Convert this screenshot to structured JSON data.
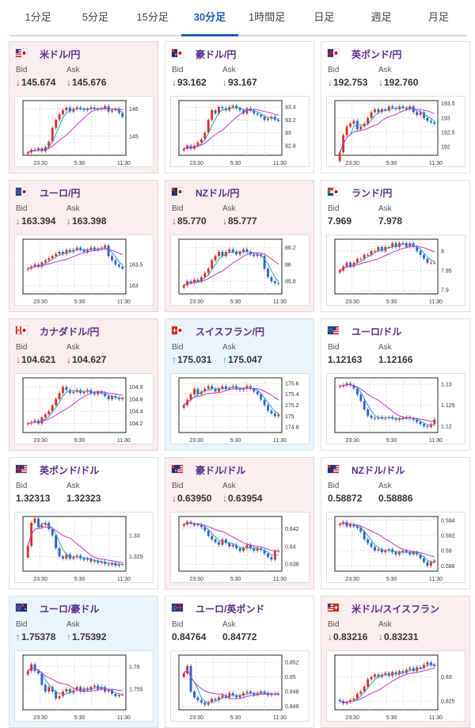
{
  "tabs": [
    {
      "label": "1分足",
      "active": false
    },
    {
      "label": "5分足",
      "active": false
    },
    {
      "label": "15分足",
      "active": false
    },
    {
      "label": "30分足",
      "active": true
    },
    {
      "label": "1時間足",
      "active": false
    },
    {
      "label": "日足",
      "active": false
    },
    {
      "label": "週足",
      "active": false
    },
    {
      "label": "月足",
      "active": false
    }
  ],
  "labels": {
    "bid": "Bid",
    "ask": "Ask"
  },
  "colors": {
    "up": "#d93025",
    "down": "#2a62c9",
    "ma": "#cc33cc",
    "active_tab": "#1a5fb4"
  },
  "cards": [
    {
      "name": "米ドル/円",
      "flag": "us-jp",
      "bg": "pink",
      "bid": "145.674",
      "ask": "145.676",
      "bid_dir": "down",
      "ask_dir": "down",
      "chart_data": {
        "type": "candlestick",
        "x_ticks": [
          "23:30",
          "5:30",
          "11:30"
        ],
        "y_ticks": [
          "146",
          "145"
        ],
        "y_tick_values": [
          146,
          145
        ],
        "ylim": [
          144.3,
          146.3
        ],
        "closes": [
          144.4,
          144.5,
          144.5,
          144.55,
          144.45,
          144.6,
          144.8,
          145.3,
          145.6,
          145.8,
          145.95,
          146.05,
          145.9,
          146.0,
          146.05,
          146.0,
          145.95,
          146.0,
          146.05,
          146.0,
          145.98,
          146.02,
          146.1,
          145.9,
          145.95,
          146.0,
          145.85,
          145.7
        ]
      }
    },
    {
      "name": "豪ドル/円",
      "flag": "au-jp",
      "bg": "white",
      "bid": "93.162",
      "ask": "93.167",
      "bid_dir": "down",
      "ask_dir": "down",
      "chart_data": {
        "type": "candlestick",
        "x_ticks": [
          "23:30",
          "5:30",
          "11:30"
        ],
        "y_ticks": [
          "93.4",
          "93.2",
          "93",
          "92.8"
        ],
        "y_tick_values": [
          93.4,
          93.2,
          93.0,
          92.8
        ],
        "ylim": [
          92.65,
          93.5
        ],
        "closes": [
          92.75,
          92.8,
          92.75,
          92.8,
          92.85,
          92.9,
          93.0,
          93.2,
          93.35,
          93.3,
          93.4,
          93.38,
          93.35,
          93.4,
          93.42,
          93.38,
          93.35,
          93.3,
          93.38,
          93.35,
          93.3,
          93.28,
          93.25,
          93.2,
          93.22,
          93.25,
          93.2,
          93.18
        ]
      }
    },
    {
      "name": "英ポンド/円",
      "flag": "gb-jp",
      "bg": "white",
      "bid": "192.753",
      "ask": "192.760",
      "bid_dir": "down",
      "ask_dir": "down",
      "chart_data": {
        "type": "candlestick",
        "x_ticks": [
          "23:30",
          "5:30",
          "11:30"
        ],
        "y_ticks": [
          "193.5",
          "193",
          "192.5",
          "192"
        ],
        "y_tick_values": [
          193.5,
          193.0,
          192.5,
          192.0
        ],
        "ylim": [
          191.7,
          193.6
        ],
        "closes": [
          191.8,
          192.4,
          192.7,
          192.8,
          192.9,
          192.6,
          192.7,
          192.8,
          193.0,
          193.2,
          193.3,
          193.2,
          193.3,
          193.25,
          193.4,
          193.35,
          193.3,
          193.4,
          193.35,
          193.3,
          193.4,
          193.2,
          193.1,
          193.2,
          193.0,
          192.9,
          192.85,
          192.8
        ]
      }
    },
    {
      "name": "ユーロ/円",
      "flag": "eu-jp",
      "bg": "pink",
      "bid": "163.394",
      "ask": "163.398",
      "bid_dir": "down",
      "ask_dir": "down",
      "chart_data": {
        "type": "candlestick",
        "x_ticks": [
          "23:30",
          "5:30",
          "11:30"
        ],
        "y_ticks": [
          "163.5",
          "163"
        ],
        "y_tick_values": [
          163.5,
          163.0
        ],
        "ylim": [
          162.8,
          164.1
        ],
        "closes": [
          163.4,
          163.45,
          163.5,
          163.45,
          163.55,
          163.6,
          163.65,
          163.7,
          163.75,
          163.8,
          163.75,
          163.85,
          163.8,
          163.85,
          163.9,
          163.85,
          163.8,
          163.85,
          163.9,
          163.85,
          163.88,
          163.9,
          163.95,
          163.7,
          163.6,
          163.5,
          163.45,
          163.4
        ]
      }
    },
    {
      "name": "NZドル/円",
      "flag": "nz-jp",
      "bg": "pink",
      "bid": "85.770",
      "ask": "85.777",
      "bid_dir": "down",
      "ask_dir": "down",
      "chart_data": {
        "type": "candlestick",
        "x_ticks": [
          "23:30",
          "5:30",
          "11:30"
        ],
        "y_ticks": [
          "86.2",
          "86",
          "85.8"
        ],
        "y_tick_values": [
          86.2,
          86.0,
          85.8
        ],
        "ylim": [
          85.65,
          86.3
        ],
        "closes": [
          85.75,
          85.8,
          85.78,
          85.82,
          85.8,
          85.85,
          85.9,
          85.95,
          86.05,
          86.1,
          86.15,
          86.1,
          86.15,
          86.18,
          86.15,
          86.12,
          86.15,
          86.18,
          86.15,
          86.12,
          86.1,
          86.12,
          86.1,
          85.95,
          85.85,
          85.8,
          85.78,
          85.77
        ]
      }
    },
    {
      "name": "ランド/円",
      "flag": "za-jp",
      "bg": "white",
      "bid": "7.969",
      "ask": "7.978",
      "bid_dir": "none",
      "ask_dir": "none",
      "chart_data": {
        "type": "candlestick",
        "x_ticks": [
          "23:30",
          "5:30",
          "11:30"
        ],
        "y_ticks": [
          "8",
          "7.95",
          "7.9"
        ],
        "y_tick_values": [
          8.0,
          7.95,
          7.9
        ],
        "ylim": [
          7.89,
          8.03
        ],
        "closes": [
          7.95,
          7.96,
          7.97,
          7.96,
          7.97,
          7.98,
          7.98,
          7.99,
          7.99,
          8.0,
          8.0,
          8.01,
          8.0,
          8.01,
          8.01,
          8.02,
          8.01,
          8.02,
          8.02,
          8.01,
          8.02,
          8.01,
          8.0,
          7.99,
          7.98,
          7.97,
          7.97,
          7.97
        ]
      }
    },
    {
      "name": "カナダドル/円",
      "flag": "ca-jp",
      "bg": "pink",
      "bid": "104.621",
      "ask": "104.627",
      "bid_dir": "down",
      "ask_dir": "down",
      "chart_data": {
        "type": "candlestick",
        "x_ticks": [
          "23:30",
          "5:30",
          "11:30"
        ],
        "y_ticks": [
          "104.8",
          "104.6",
          "104.4",
          "104.2"
        ],
        "y_tick_values": [
          104.8,
          104.6,
          104.4,
          104.2
        ],
        "ylim": [
          104.05,
          104.95
        ],
        "closes": [
          104.2,
          104.22,
          104.25,
          104.2,
          104.3,
          104.35,
          104.4,
          104.5,
          104.6,
          104.7,
          104.8,
          104.75,
          104.7,
          104.72,
          104.75,
          104.7,
          104.72,
          104.75,
          104.7,
          104.68,
          104.72,
          104.7,
          104.65,
          104.6,
          104.65,
          104.62,
          104.6,
          104.62
        ]
      }
    },
    {
      "name": "スイスフラン/円",
      "flag": "ch-jp",
      "bg": "blue",
      "bid": "175.031",
      "ask": "175.047",
      "bid_dir": "up",
      "ask_dir": "up",
      "chart_data": {
        "type": "candlestick",
        "x_ticks": [
          "23:30",
          "5:30",
          "11:30"
        ],
        "y_ticks": [
          "175.6",
          "175.4",
          "175.2",
          "175",
          "174.8"
        ],
        "y_tick_values": [
          175.6,
          175.4,
          175.2,
          175.0,
          174.8
        ],
        "ylim": [
          174.7,
          175.7
        ],
        "closes": [
          175.2,
          175.3,
          175.4,
          175.5,
          175.4,
          175.45,
          175.5,
          175.55,
          175.5,
          175.45,
          175.5,
          175.55,
          175.5,
          175.52,
          175.55,
          175.5,
          175.48,
          175.5,
          175.55,
          175.5,
          175.45,
          175.4,
          175.3,
          175.2,
          175.1,
          175.05,
          175.0,
          175.03
        ]
      }
    },
    {
      "name": "ユーロ/ドル",
      "flag": "eu-us",
      "bg": "white",
      "bid": "1.12163",
      "ask": "1.12166",
      "bid_dir": "none",
      "ask_dir": "none",
      "chart_data": {
        "type": "candlestick",
        "x_ticks": [
          "23:30",
          "5:30",
          "11:30"
        ],
        "y_ticks": [
          "1.13",
          "1.125",
          "1.12"
        ],
        "y_tick_values": [
          1.13,
          1.125,
          1.12
        ],
        "ylim": [
          1.1185,
          1.1315
        ],
        "closes": [
          1.1295,
          1.1298,
          1.1302,
          1.1298,
          1.129,
          1.1275,
          1.126,
          1.124,
          1.1225,
          1.122,
          1.1218,
          1.1222,
          1.1218,
          1.122,
          1.1222,
          1.1218,
          1.1215,
          1.1218,
          1.122,
          1.1222,
          1.1218,
          1.1215,
          1.121,
          1.1205,
          1.12,
          1.1198,
          1.1205,
          1.1216
        ]
      }
    },
    {
      "name": "英ポンド/ドル",
      "flag": "gb-us",
      "bg": "white",
      "bid": "1.32313",
      "ask": "1.32323",
      "bid_dir": "none",
      "ask_dir": "none",
      "chart_data": {
        "type": "candlestick",
        "x_ticks": [
          "23:30",
          "5:30",
          "11:30"
        ],
        "y_ticks": [
          "1.33",
          "1.325"
        ],
        "y_tick_values": [
          1.33,
          1.325
        ],
        "ylim": [
          1.3215,
          1.3345
        ],
        "closes": [
          1.3275,
          1.333,
          1.334,
          1.332,
          1.3325,
          1.333,
          1.3315,
          1.33,
          1.327,
          1.325,
          1.3245,
          1.3255,
          1.3245,
          1.3248,
          1.3252,
          1.3245,
          1.3242,
          1.3245,
          1.3238,
          1.324,
          1.3235,
          1.3238,
          1.3232,
          1.323,
          1.3235,
          1.3228,
          1.3232,
          1.3231
        ]
      }
    },
    {
      "name": "豪ドル/ドル",
      "flag": "au-us",
      "bg": "pink",
      "bid": "0.63950",
      "ask": "0.63954",
      "bid_dir": "down",
      "ask_dir": "down",
      "chart_data": {
        "type": "candlestick",
        "x_ticks": [
          "23:30",
          "5:30",
          "11:30"
        ],
        "y_ticks": [
          "0.642",
          "0.64",
          "0.638"
        ],
        "y_tick_values": [
          0.642,
          0.64,
          0.638
        ],
        "ylim": [
          0.6372,
          0.6434
        ],
        "closes": [
          0.6425,
          0.6428,
          0.6426,
          0.6424,
          0.6425,
          0.6422,
          0.6418,
          0.6412,
          0.6408,
          0.6405,
          0.6402,
          0.6408,
          0.6404,
          0.64,
          0.6402,
          0.6398,
          0.6395,
          0.6398,
          0.6402,
          0.6398,
          0.6395,
          0.6398,
          0.6396,
          0.6392,
          0.6388,
          0.6385,
          0.6395,
          0.6395
        ]
      }
    },
    {
      "name": "NZドル/ドル",
      "flag": "nz-us",
      "bg": "white",
      "bid": "0.58872",
      "ask": "0.58886",
      "bid_dir": "none",
      "ask_dir": "none",
      "chart_data": {
        "type": "candlestick",
        "x_ticks": [
          "23:30",
          "5:30",
          "11:30"
        ],
        "y_ticks": [
          "0.594",
          "0.592",
          "0.59",
          "0.588"
        ],
        "y_tick_values": [
          0.594,
          0.592,
          0.59,
          0.588
        ],
        "ylim": [
          0.5873,
          0.5945
        ],
        "closes": [
          0.5935,
          0.5938,
          0.5932,
          0.5935,
          0.5932,
          0.593,
          0.5925,
          0.5915,
          0.591,
          0.5905,
          0.59,
          0.5902,
          0.5898,
          0.59,
          0.5902,
          0.5898,
          0.5895,
          0.5898,
          0.59,
          0.5898,
          0.5895,
          0.5898,
          0.5895,
          0.589,
          0.5885,
          0.588,
          0.5885,
          0.5887
        ]
      }
    },
    {
      "name": "ユーロ/豪ドル",
      "flag": "eu-au",
      "bg": "blue",
      "bid": "1.75378",
      "ask": "1.75392",
      "bid_dir": "up",
      "ask_dir": "up",
      "chart_data": {
        "type": "candlestick",
        "x_ticks": [
          "23:30",
          "5:30",
          "11:30"
        ],
        "y_ticks": [
          "1.76",
          "1.755"
        ],
        "y_tick_values": [
          1.76,
          1.755
        ],
        "ylim": [
          1.7505,
          1.7625
        ],
        "closes": [
          1.759,
          1.7605,
          1.759,
          1.7585,
          1.756,
          1.7545,
          1.7555,
          1.7545,
          1.753,
          1.7535,
          1.7545,
          1.755,
          1.7542,
          1.7548,
          1.7555,
          1.7545,
          1.7552,
          1.7548,
          1.7555,
          1.7558,
          1.755,
          1.7555,
          1.7545,
          1.7548,
          1.754,
          1.7535,
          1.7538,
          1.7538
        ]
      }
    },
    {
      "name": "ユーロ/英ポンド",
      "flag": "eu-gb",
      "bg": "white",
      "bid": "0.84764",
      "ask": "0.84772",
      "bid_dir": "none",
      "ask_dir": "none",
      "chart_data": {
        "type": "candlestick",
        "x_ticks": [
          "23:30",
          "5:30",
          "11:30"
        ],
        "y_ticks": [
          "0.852",
          "0.85",
          "0.848",
          "0.846"
        ],
        "y_tick_values": [
          0.852,
          0.85,
          0.848,
          0.846
        ],
        "ylim": [
          0.8455,
          0.853
        ],
        "closes": [
          0.8505,
          0.8515,
          0.848,
          0.8472,
          0.8468,
          0.8465,
          0.8462,
          0.8465,
          0.847,
          0.8468,
          0.8472,
          0.8475,
          0.8472,
          0.8478,
          0.8475,
          0.8472,
          0.8475,
          0.8478,
          0.848,
          0.8478,
          0.8475,
          0.8478,
          0.848,
          0.8478,
          0.8475,
          0.8476,
          0.8477,
          0.8476
        ]
      }
    },
    {
      "name": "米ドル/スイスフラン",
      "flag": "us-ch",
      "bg": "pink",
      "bid": "0.83216",
      "ask": "0.83231",
      "bid_dir": "down",
      "ask_dir": "down",
      "chart_data": {
        "type": "candlestick",
        "x_ticks": [
          "23:30",
          "5:30",
          "11:30"
        ],
        "y_ticks": [
          "0.83",
          "0.825"
        ],
        "y_tick_values": [
          0.83,
          0.825
        ],
        "ylim": [
          0.8232,
          0.8345
        ],
        "closes": [
          0.825,
          0.8245,
          0.8248,
          0.8252,
          0.8255,
          0.8265,
          0.827,
          0.828,
          0.8295,
          0.83,
          0.8305,
          0.83,
          0.8305,
          0.8308,
          0.8302,
          0.831,
          0.8305,
          0.8312,
          0.8308,
          0.8315,
          0.8318,
          0.8312,
          0.832,
          0.8318,
          0.8325,
          0.833,
          0.8325,
          0.8322
        ]
      }
    }
  ]
}
